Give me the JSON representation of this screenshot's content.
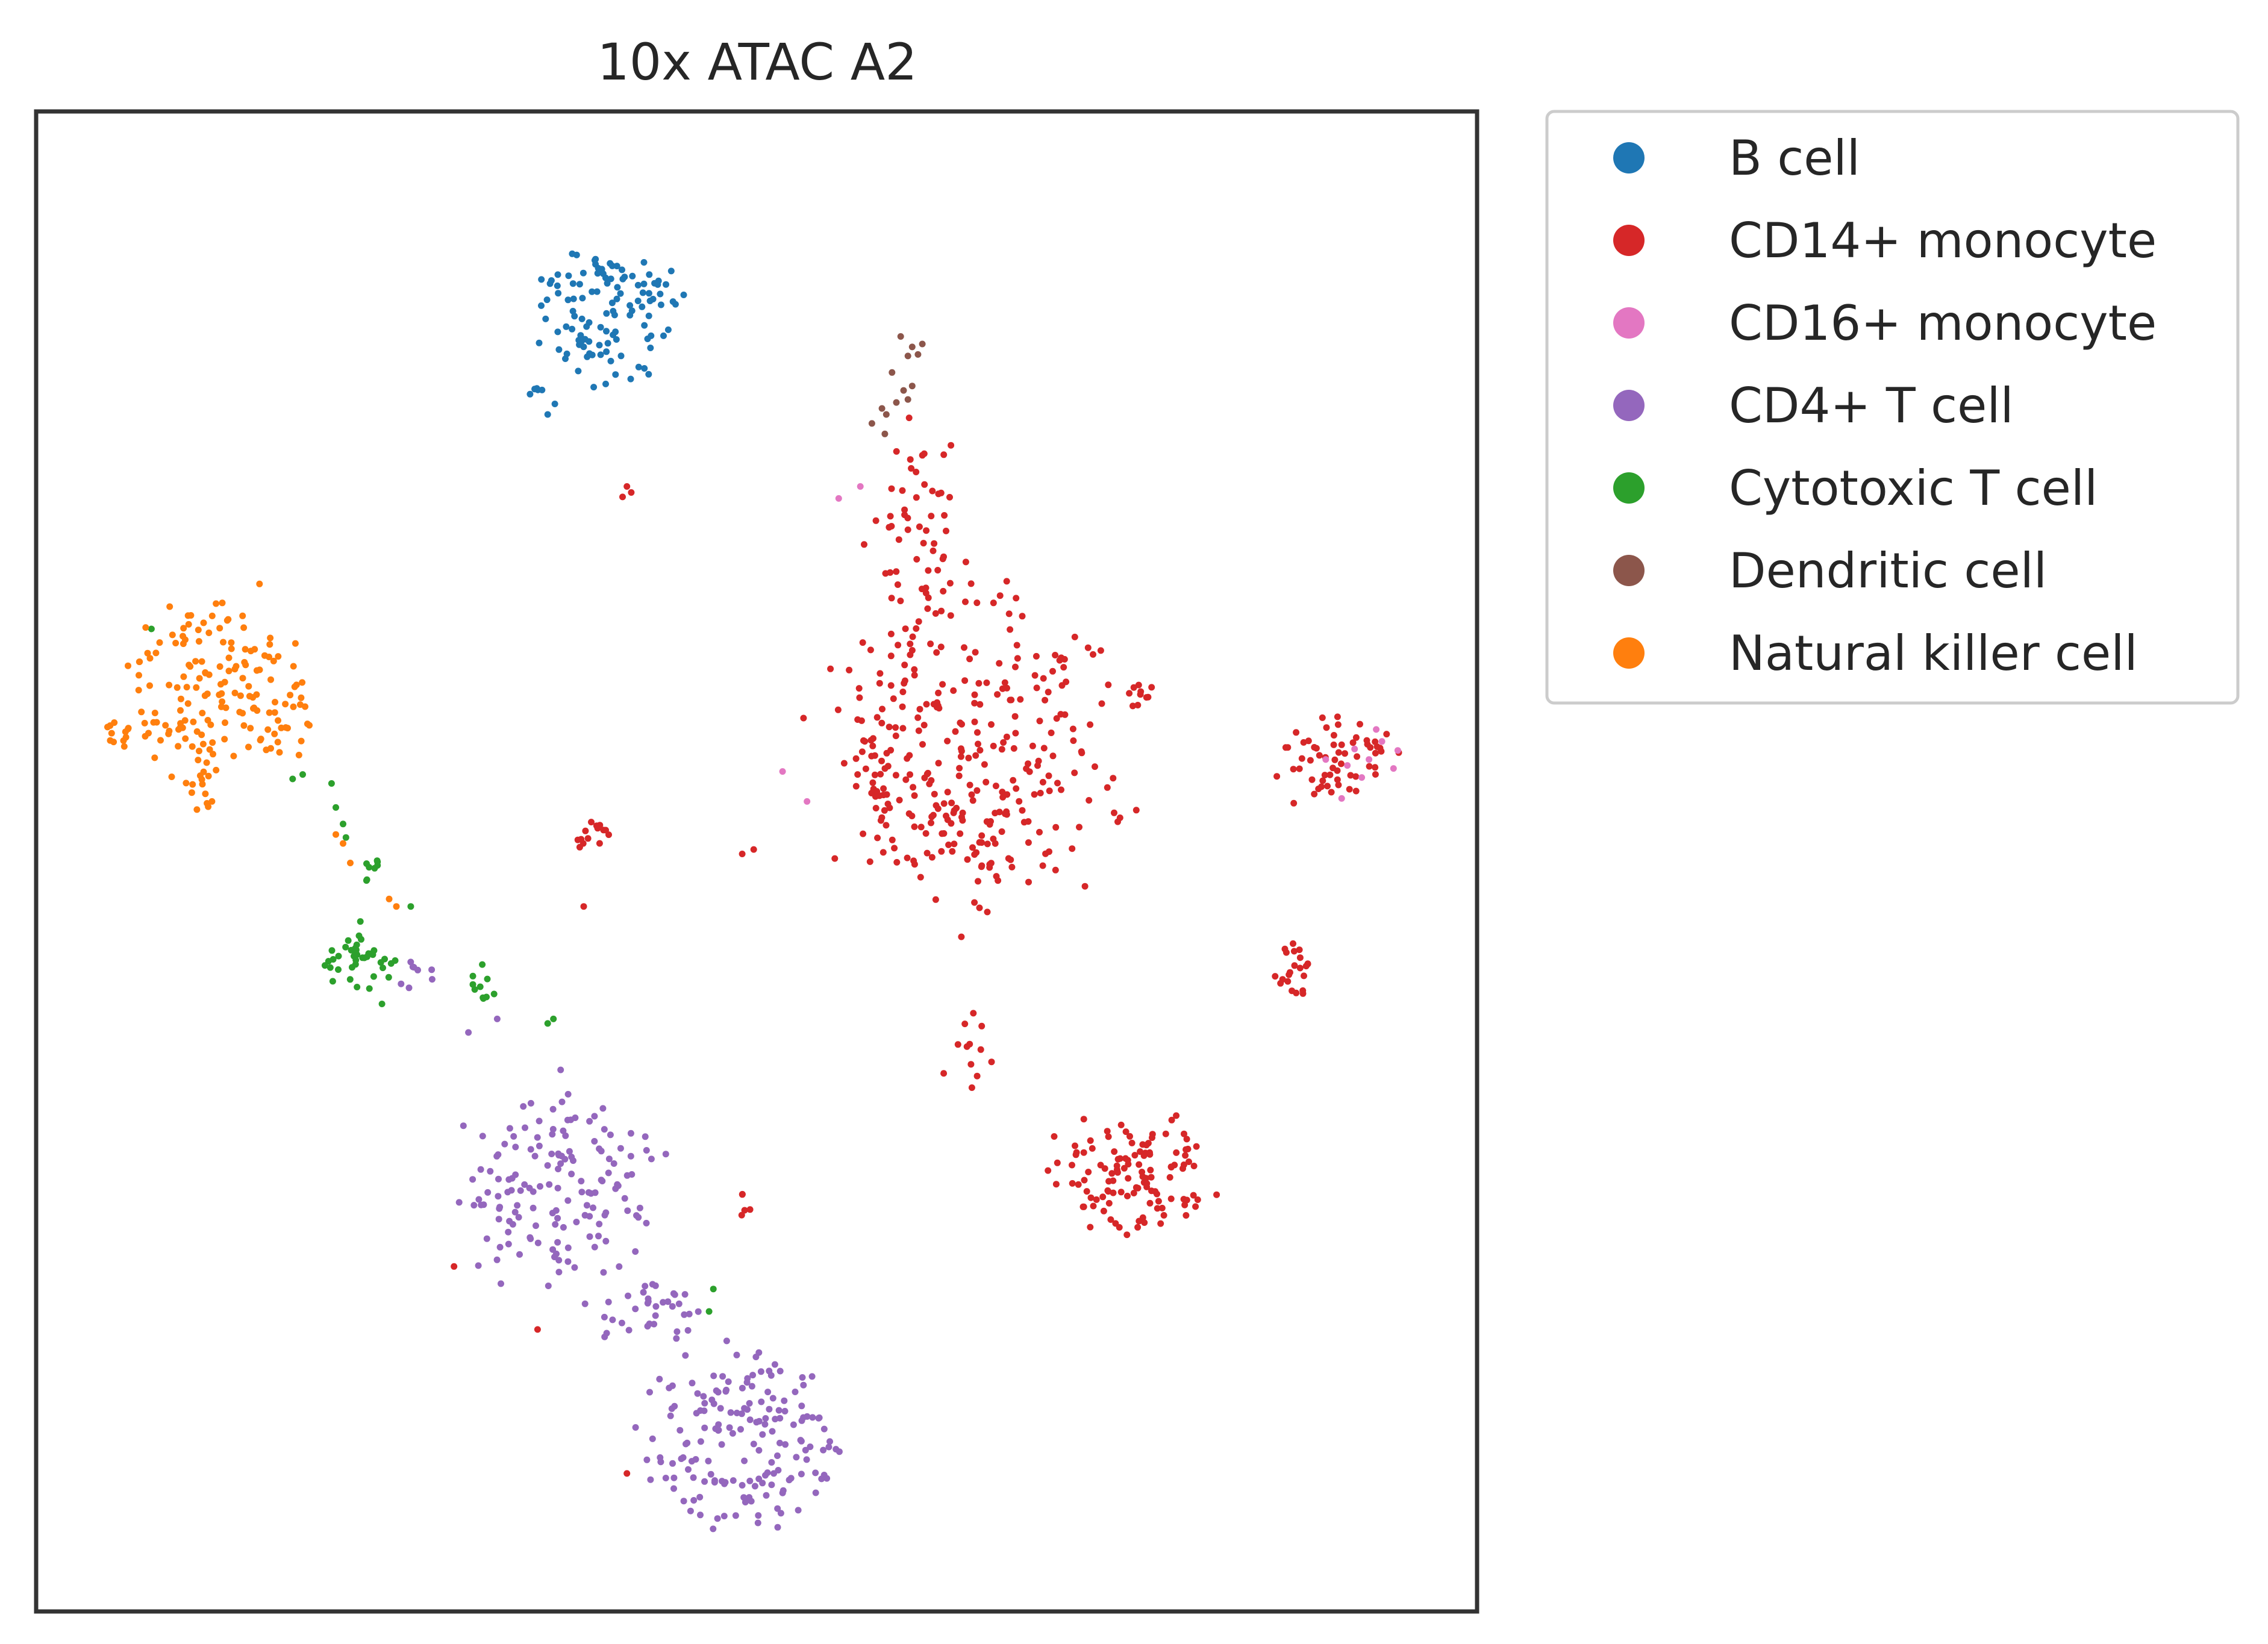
{
  "chart_data": {
    "type": "scatter",
    "title": "10x ATAC A2",
    "xlabel": "",
    "ylabel": "",
    "axes_ticks": false,
    "grid": false,
    "legend_placement": "outside-upper-right",
    "xlim": [
      0,
      100
    ],
    "ylim": [
      0,
      100
    ],
    "series": [
      {
        "name": "B cell",
        "color": "#1f77b4",
        "clusters": [
          {
            "cx": 39.5,
            "cy": 86.5,
            "rx": 6.0,
            "ry": 5.5,
            "n": 115,
            "seed": 11
          },
          {
            "cx": 34.8,
            "cy": 81.2,
            "rx": 0.8,
            "ry": 0.7,
            "n": 5,
            "seed": 12
          }
        ],
        "points": [
          [
            35.5,
            79.8
          ],
          [
            36.0,
            80.5
          ]
        ]
      },
      {
        "name": "CD14+ monocyte",
        "color": "#d62728",
        "clusters": [
          {
            "cx": 65.0,
            "cy": 57.0,
            "rx": 12.0,
            "ry": 13.0,
            "n": 320,
            "seed": 21
          },
          {
            "cx": 61.0,
            "cy": 72.0,
            "rx": 4.0,
            "ry": 8.0,
            "n": 55,
            "seed": 22
          },
          {
            "cx": 75.8,
            "cy": 29.0,
            "rx": 6.5,
            "ry": 5.5,
            "n": 120,
            "seed": 23
          },
          {
            "cx": 90.0,
            "cy": 56.8,
            "rx": 5.0,
            "ry": 3.6,
            "n": 60,
            "seed": 24
          },
          {
            "cx": 87.2,
            "cy": 42.8,
            "rx": 1.5,
            "ry": 2.4,
            "n": 22,
            "seed": 25
          },
          {
            "cx": 38.5,
            "cy": 51.7,
            "rx": 1.6,
            "ry": 1.4,
            "n": 16,
            "seed": 26
          },
          {
            "cx": 76.5,
            "cy": 61.0,
            "rx": 1.4,
            "ry": 1.3,
            "n": 10,
            "seed": 27
          },
          {
            "cx": 65.0,
            "cy": 37.0,
            "rx": 2.5,
            "ry": 3.2,
            "n": 12,
            "seed": 28
          },
          {
            "cx": 49.0,
            "cy": 27.0,
            "rx": 1.0,
            "ry": 1.0,
            "n": 5,
            "seed": 29
          }
        ],
        "points": [
          [
            40.7,
            74.3
          ],
          [
            41.0,
            75.0
          ],
          [
            41.3,
            74.6
          ],
          [
            38.0,
            47.0
          ],
          [
            29.0,
            23.0
          ],
          [
            34.8,
            18.8
          ],
          [
            41.0,
            9.2
          ],
          [
            49.0,
            50.5
          ],
          [
            49.8,
            50.8
          ]
        ]
      },
      {
        "name": "CD16+ monocyte",
        "color": "#e377c2",
        "points": [
          [
            91.5,
            57.5
          ],
          [
            92.5,
            56.8
          ],
          [
            93.4,
            58.0
          ],
          [
            94.2,
            56.2
          ],
          [
            92.0,
            55.6
          ],
          [
            93.0,
            58.8
          ],
          [
            94.5,
            57.4
          ],
          [
            91.0,
            56.4
          ],
          [
            90.6,
            54.2
          ],
          [
            89.5,
            56.8
          ],
          [
            51.8,
            56.0
          ],
          [
            53.5,
            54.0
          ],
          [
            57.2,
            75.0
          ],
          [
            55.7,
            74.2
          ]
        ]
      },
      {
        "name": "CD4+ T cell",
        "color": "#9467bd",
        "clusters": [
          {
            "cx": 36.5,
            "cy": 28.5,
            "rx": 8.5,
            "ry": 8.0,
            "n": 150,
            "seed": 41
          },
          {
            "cx": 49.0,
            "cy": 11.5,
            "rx": 8.5,
            "ry": 7.0,
            "n": 170,
            "seed": 42
          },
          {
            "cx": 42.5,
            "cy": 20.0,
            "rx": 5.0,
            "ry": 3.0,
            "n": 35,
            "seed": 43
          },
          {
            "cx": 26.5,
            "cy": 42.0,
            "rx": 1.5,
            "ry": 1.5,
            "n": 8,
            "seed": 44
          }
        ],
        "points": [
          [
            32.0,
            39.5
          ],
          [
            30.0,
            38.6
          ]
        ]
      },
      {
        "name": "Cytotoxic T cell",
        "color": "#2ca02c",
        "clusters": [
          {
            "cx": 22.5,
            "cy": 43.2,
            "rx": 3.0,
            "ry": 2.2,
            "n": 40,
            "seed": 51
          },
          {
            "cx": 31.0,
            "cy": 41.8,
            "rx": 1.4,
            "ry": 1.8,
            "n": 10,
            "seed": 52
          },
          {
            "cx": 23.5,
            "cy": 49.3,
            "rx": 1.5,
            "ry": 1.4,
            "n": 8,
            "seed": 53
          }
        ],
        "points": [
          [
            17.8,
            55.5
          ],
          [
            18.5,
            55.8
          ],
          [
            20.5,
            55.2
          ],
          [
            21.3,
            52.5
          ],
          [
            21.5,
            51.6
          ],
          [
            35.5,
            39.2
          ],
          [
            35.9,
            39.5
          ],
          [
            47.0,
            21.5
          ],
          [
            46.7,
            20.0
          ],
          [
            26.0,
            47.0
          ],
          [
            22.5,
            46.0
          ],
          [
            24.0,
            40.5
          ],
          [
            8.0,
            65.5
          ],
          [
            20.8,
            53.6
          ]
        ]
      },
      {
        "name": "Dendritic cell",
        "color": "#8c564b",
        "points": [
          [
            60.8,
            84.3
          ],
          [
            61.5,
            84.5
          ],
          [
            60.5,
            83.7
          ],
          [
            61.2,
            83.8
          ],
          [
            59.4,
            82.6
          ],
          [
            60.2,
            81.4
          ],
          [
            60.8,
            81.7
          ],
          [
            59.7,
            80.6
          ],
          [
            60.5,
            80.8
          ],
          [
            59.0,
            79.8
          ],
          [
            58.0,
            79.2
          ],
          [
            58.9,
            78.5
          ],
          [
            58.7,
            80.2
          ],
          [
            60.0,
            85.0
          ]
        ]
      },
      {
        "name": "Natural killer cell",
        "color": "#ff7f0e",
        "clusters": [
          {
            "cx": 12.0,
            "cy": 61.5,
            "rx": 7.0,
            "ry": 7.0,
            "n": 145,
            "seed": 71
          },
          {
            "cx": 5.5,
            "cy": 58.5,
            "rx": 1.6,
            "ry": 1.4,
            "n": 12,
            "seed": 72
          },
          {
            "cx": 18.0,
            "cy": 60.0,
            "rx": 1.8,
            "ry": 3.5,
            "n": 18,
            "seed": 73
          },
          {
            "cx": 11.5,
            "cy": 54.5,
            "rx": 1.6,
            "ry": 1.6,
            "n": 12,
            "seed": 74
          }
        ],
        "points": [
          [
            20.8,
            51.8
          ],
          [
            21.3,
            51.2
          ],
          [
            21.8,
            49.9
          ],
          [
            24.5,
            47.5
          ],
          [
            25.0,
            47.0
          ],
          [
            7.6,
            65.6
          ],
          [
            15.5,
            68.5
          ]
        ]
      }
    ]
  },
  "legend": {
    "entries": [
      "B cell",
      "CD14+ monocyte",
      "CD16+ monocyte",
      "CD4+ T cell",
      "Cytotoxic T cell",
      "Dendritic cell",
      "Natural killer cell"
    ],
    "colors": [
      "#1f77b4",
      "#d62728",
      "#e377c2",
      "#9467bd",
      "#2ca02c",
      "#8c564b",
      "#ff7f0e"
    ]
  }
}
